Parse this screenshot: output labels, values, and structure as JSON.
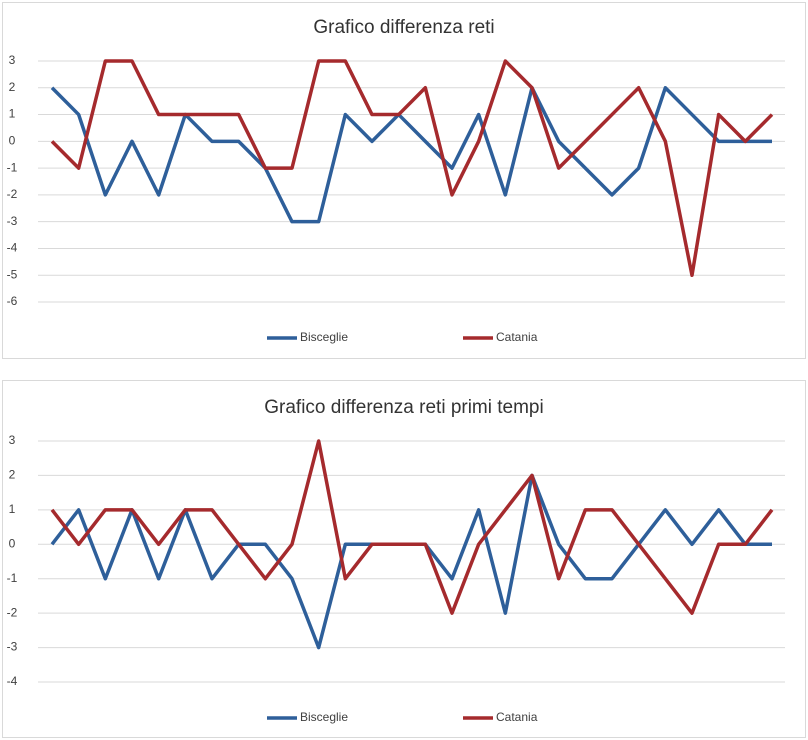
{
  "chart_data": [
    {
      "type": "line",
      "title": "Grafico differenza reti",
      "categories": [
        null,
        null,
        null,
        null,
        null,
        null,
        null,
        null,
        null,
        null,
        null,
        null,
        null,
        null,
        null,
        null,
        null,
        null,
        null,
        null,
        null,
        null,
        null,
        null,
        null,
        null,
        null,
        null
      ],
      "series": [
        {
          "name": "Bisceglie",
          "color": "#2e5f9a",
          "values": [
            2,
            1,
            -2,
            0,
            -2,
            1,
            0,
            0,
            -1,
            -3,
            -3,
            1,
            0,
            1,
            0,
            -1,
            1,
            -2,
            2,
            0,
            -1,
            -2,
            -1,
            2,
            1,
            0,
            0,
            0
          ]
        },
        {
          "name": "Catania",
          "color": "#a52a2d",
          "values": [
            0,
            -1,
            3,
            3,
            1,
            1,
            1,
            1,
            -1,
            -1,
            3,
            3,
            1,
            1,
            2,
            -2,
            0,
            3,
            2,
            -1,
            0,
            1,
            2,
            0,
            -5,
            1,
            0,
            1
          ]
        }
      ],
      "ylim": [
        -6,
        3
      ],
      "yticks": [
        -6,
        -5,
        -4,
        -3,
        -2,
        -1,
        0,
        1,
        2,
        3
      ],
      "grid": true,
      "legend": "bottom"
    },
    {
      "type": "line",
      "title": "Grafico differenza reti primi tempi",
      "categories": [
        null,
        null,
        null,
        null,
        null,
        null,
        null,
        null,
        null,
        null,
        null,
        null,
        null,
        null,
        null,
        null,
        null,
        null,
        null,
        null,
        null,
        null,
        null,
        null,
        null,
        null,
        null,
        null
      ],
      "series": [
        {
          "name": "Bisceglie",
          "color": "#2e5f9a",
          "values": [
            0,
            1,
            -1,
            1,
            -1,
            1,
            -1,
            0,
            0,
            -1,
            -3,
            0,
            0,
            0,
            0,
            -1,
            1,
            -2,
            2,
            0,
            -1,
            -1,
            0,
            1,
            0,
            1,
            0,
            0
          ]
        },
        {
          "name": "Catania",
          "color": "#a52a2d",
          "values": [
            1,
            0,
            1,
            1,
            0,
            1,
            1,
            0,
            -1,
            0,
            3,
            -1,
            0,
            0,
            0,
            -2,
            0,
            1,
            2,
            -1,
            1,
            1,
            0,
            -1,
            -2,
            0,
            0,
            1
          ]
        }
      ],
      "ylim": [
        -4,
        3
      ],
      "yticks": [
        -4,
        -3,
        -2,
        -1,
        0,
        1,
        2,
        3
      ],
      "grid": true,
      "legend": "bottom"
    }
  ]
}
